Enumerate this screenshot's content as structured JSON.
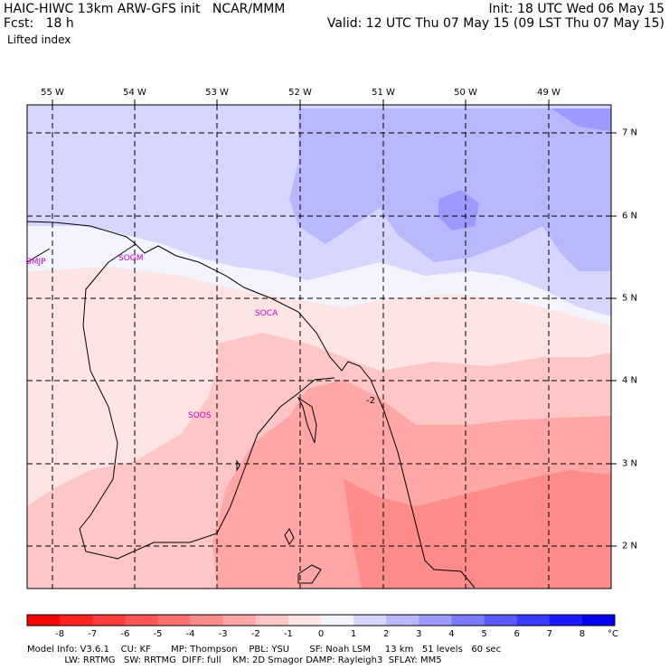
{
  "header": {
    "left_line1": "HAIC-HIWC 13km ARW-GFS init   NCAR/MMM",
    "left_line2": "Fcst:   18 h",
    "field": "Lifted index",
    "right_line1": "Init: 18 UTC Wed 06 May 15",
    "right_line2": "Valid: 12 UTC Thu 07 May 15 (09 LST Thu 07 May 15)"
  },
  "map": {
    "lon_labels": [
      "55 W",
      "54 W",
      "53 W",
      "52 W",
      "51 W",
      "50 W",
      "49 W"
    ],
    "lat_labels": [
      "7 N",
      "6 N",
      "5 N",
      "4 N",
      "3 N",
      "2 N"
    ],
    "stations": [
      {
        "id": "SMJP",
        "label": "SMJP"
      },
      {
        "id": "SOGM",
        "label": "SOGM"
      },
      {
        "id": "SOCA",
        "label": "SOCA"
      },
      {
        "id": "SOOS",
        "label": "SOOS"
      }
    ],
    "contour_label": "-2"
  },
  "colorbar": {
    "labels": [
      "-8",
      "-7",
      "-6",
      "-5",
      "-4",
      "-3",
      "-2",
      "-1",
      "0",
      "1",
      "2",
      "3",
      "4",
      "5",
      "6",
      "7",
      "8"
    ],
    "unit": "°C",
    "colors": [
      "#ff0000",
      "#ff2222",
      "#ff3b3b",
      "#ff5555",
      "#ff7070",
      "#ff8b8b",
      "#ffa6a6",
      "#ffc6c6",
      "#ffe4e4",
      "#f4f4ff",
      "#d6d6ff",
      "#b8b8ff",
      "#9a9aff",
      "#7a7aff",
      "#5a5aff",
      "#3a3aff",
      "#1a1aff",
      "#0000ee"
    ]
  },
  "footer": {
    "line1": "Model Info: V3.6.1    CU: KF       MP: Thompson    PBL: YSU       SF: Noah LSM     13 km   51 levels   60 sec",
    "line2": "             LW: RRTMG   SW: RRTMG  DIFF: full    KM: 2D Smagor DAMP: Rayleigh3  SFLAY: MM5"
  }
}
